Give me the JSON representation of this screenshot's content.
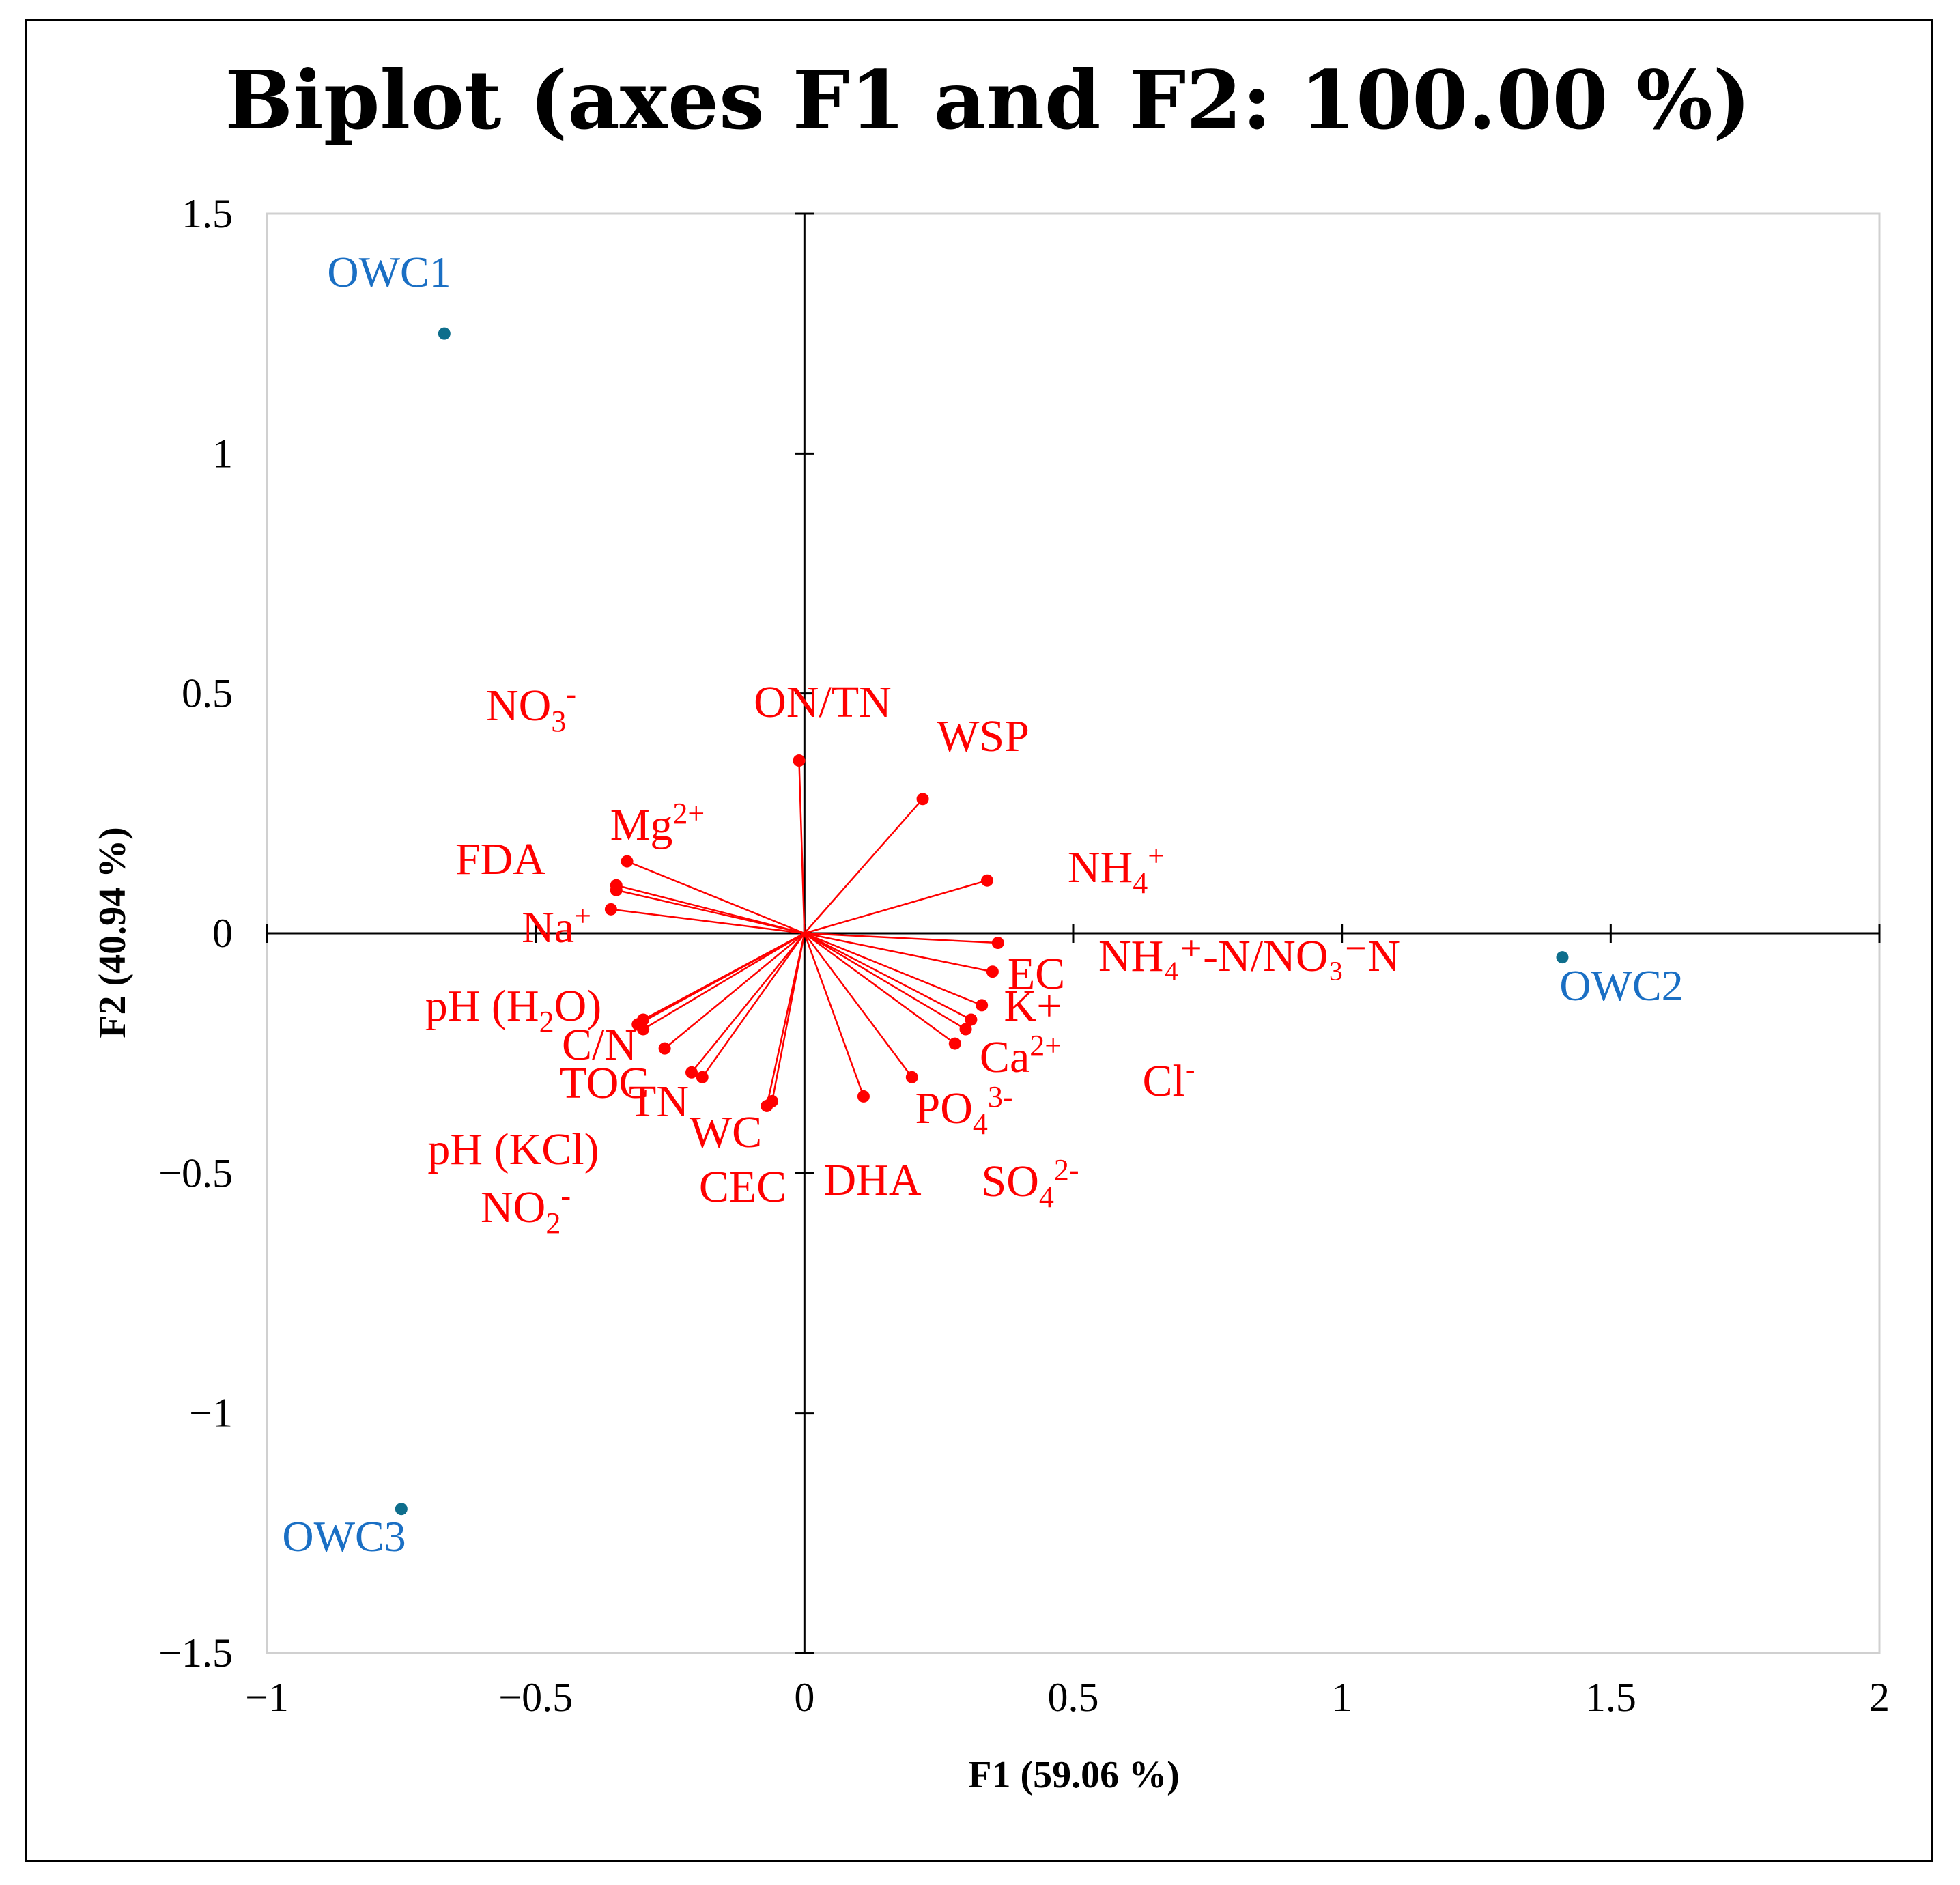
{
  "chart_data": {
    "type": "scatter",
    "subtype": "biplot",
    "title": "Biplot (axes F1 and F2: 100.00 %)",
    "xlabel": "F1 (59.06 %)",
    "ylabel": "F2 (40.94 %)",
    "xlim": [
      -1,
      2
    ],
    "ylim": [
      -1.5,
      1.5
    ],
    "xticks": [
      -1,
      -0.5,
      0,
      0.5,
      1,
      1.5,
      2
    ],
    "xtick_labels": [
      "−1",
      "−0.5",
      "0",
      "0.5",
      "1",
      "1.5",
      "2"
    ],
    "yticks": [
      1.5,
      1,
      0.5,
      0,
      -0.5,
      -1,
      -1.5
    ],
    "ytick_labels": [
      "1.5",
      "1",
      "0.5",
      "0",
      "−0.5",
      "−1",
      "−1.5"
    ],
    "colors": {
      "variables": "#ff0000",
      "observations": "#1a6fc4",
      "obs_points": "#0e6e8c",
      "axis": "#000000",
      "box": "#d0d0d0"
    },
    "variables": [
      {
        "name": "ON/TN",
        "x": -0.01,
        "y": 0.36,
        "sup": "",
        "sub": "",
        "post": ""
      },
      {
        "name": "WSP",
        "x": 0.22,
        "y": 0.28,
        "sup": "",
        "sub": "",
        "post": ""
      },
      {
        "name": "Mg",
        "x": -0.33,
        "y": 0.15,
        "sup": "2+",
        "sub": "",
        "post": ""
      },
      {
        "name": "FDA",
        "x": -0.35,
        "y": 0.1,
        "sup": "",
        "sub": "",
        "post": ""
      },
      {
        "name": "Na",
        "x": -0.36,
        "y": 0.05,
        "sup": "+",
        "sub": "",
        "post": ""
      },
      {
        "name": "NO",
        "x": -0.35,
        "y": 0.09,
        "sup": "-",
        "sub": "3",
        "post": ""
      },
      {
        "name": "NH",
        "x": 0.34,
        "y": 0.11,
        "sup": "+",
        "sub": "4",
        "post": ""
      },
      {
        "name": "NH₄⁺-N/NO₃⁻N",
        "x": 0.36,
        "y": -0.02,
        "sup": "",
        "sub": "",
        "post": ""
      },
      {
        "name": "EC",
        "x": 0.35,
        "y": -0.08,
        "sup": "",
        "sub": "",
        "post": ""
      },
      {
        "name": "K+",
        "x": 0.33,
        "y": -0.15,
        "sup": "",
        "sub": "",
        "post": ""
      },
      {
        "name": "Cl",
        "x": 0.31,
        "y": -0.18,
        "sup": "-",
        "sub": "",
        "post": ""
      },
      {
        "name": "SO",
        "x": 0.3,
        "y": -0.2,
        "sup": "2-",
        "sub": "4",
        "post": ""
      },
      {
        "name": "Ca",
        "x": 0.28,
        "y": -0.23,
        "sup": "2+",
        "sub": "",
        "post": ""
      },
      {
        "name": "PO",
        "x": 0.2,
        "y": -0.3,
        "sup": "3-",
        "sub": "4",
        "post": ""
      },
      {
        "name": "DHA",
        "x": 0.11,
        "y": -0.34,
        "sup": "",
        "sub": "",
        "post": ""
      },
      {
        "name": "CEC",
        "x": -0.06,
        "y": -0.35,
        "sup": "",
        "sub": "",
        "post": ""
      },
      {
        "name": "WC",
        "x": -0.07,
        "y": -0.36,
        "sup": "",
        "sub": "",
        "post": ""
      },
      {
        "name": "TN",
        "x": -0.19,
        "y": -0.3,
        "sup": "",
        "sub": "",
        "post": ""
      },
      {
        "name": "TOC",
        "x": -0.21,
        "y": -0.29,
        "sup": "",
        "sub": "",
        "post": ""
      },
      {
        "name": "C/N",
        "x": -0.26,
        "y": -0.24,
        "sup": "",
        "sub": "",
        "post": ""
      },
      {
        "name": "pH (H",
        "x": -0.3,
        "y": -0.18,
        "sup": "",
        "sub": "2",
        "post": "O)"
      },
      {
        "name": "pH (KCl)",
        "x": -0.31,
        "y": -0.19,
        "sup": "",
        "sub": "",
        "post": ""
      },
      {
        "name": "NO",
        "x": -0.3,
        "y": -0.2,
        "sup": "-",
        "sub": "2",
        "post": ""
      }
    ],
    "observations": [
      {
        "name": "OWC1",
        "x": -0.67,
        "y": 1.25
      },
      {
        "name": "OWC2",
        "x": 1.41,
        "y": -0.05
      },
      {
        "name": "OWC3",
        "x": -0.75,
        "y": -1.2
      }
    ]
  }
}
